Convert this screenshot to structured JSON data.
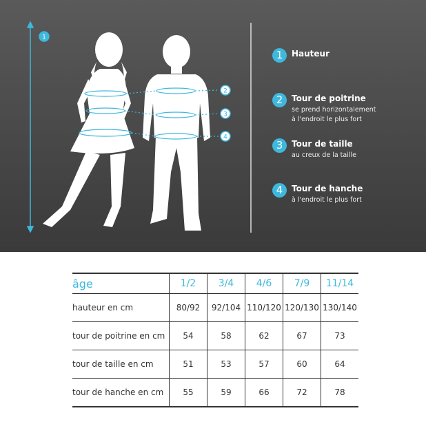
{
  "colors": {
    "accent": "#3fb8dd",
    "panel": "#4a4a4a"
  },
  "diagram": {
    "markers": [
      "1",
      "2",
      "3",
      "4"
    ]
  },
  "legend": [
    {
      "num": "1",
      "title": "Hauteur",
      "sub": []
    },
    {
      "num": "2",
      "title": "Tour de poitrine",
      "sub": [
        "se prend horizontalement",
        "à l'endroit le plus fort"
      ]
    },
    {
      "num": "3",
      "title": "Tour de taille",
      "sub": [
        "au creux de la taille"
      ]
    },
    {
      "num": "4",
      "title": "Tour de hanche",
      "sub": [
        "à l'endroit le plus fort"
      ]
    }
  ],
  "table": {
    "header": [
      "âge",
      "1/2",
      "3/4",
      "4/6",
      "7/9",
      "11/14"
    ],
    "rows": [
      [
        "hauteur en cm",
        "80/92",
        "92/104",
        "110/120",
        "120/130",
        "130/140"
      ],
      [
        "tour de poitrine en cm",
        "54",
        "58",
        "62",
        "67",
        "73"
      ],
      [
        "tour de taille en cm",
        "51",
        "53",
        "57",
        "60",
        "64"
      ],
      [
        "tour de hanche en cm",
        "55",
        "59",
        "66",
        "72",
        "78"
      ]
    ]
  }
}
